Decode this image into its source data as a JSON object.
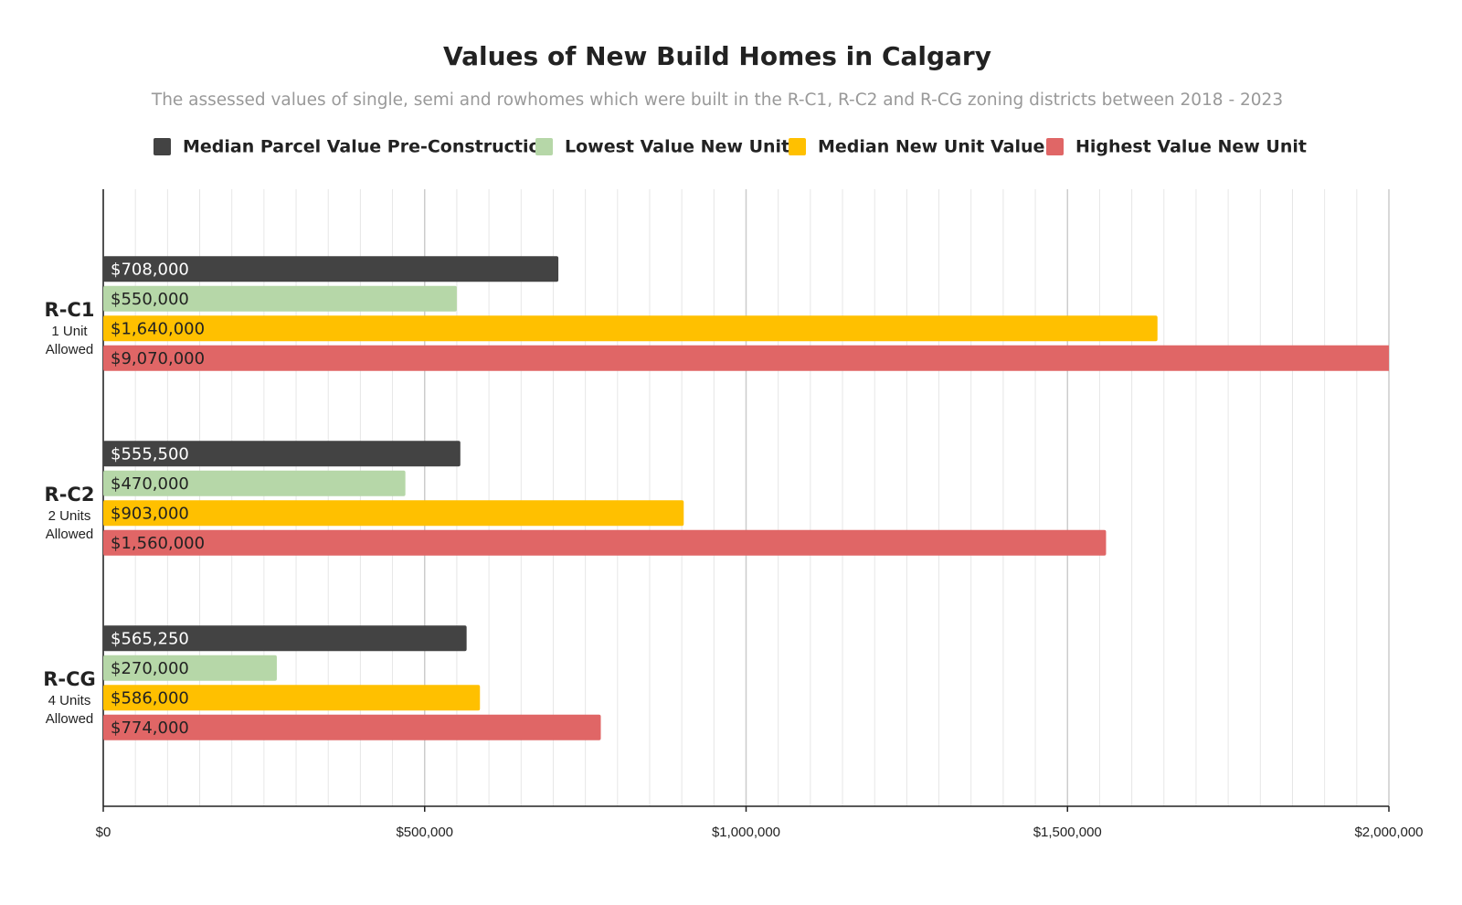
{
  "chart_data": {
    "type": "hbar",
    "title": "Values of New Build Homes in Calgary",
    "subtitle": "The assessed values of single, semi and rowhomes which were built in the R-C1, R-C2 and R-CG zoning districts between 2018 - 2023",
    "categories": [
      "R-C1",
      "R-C2",
      "R-CG"
    ],
    "category_notes": [
      [
        "1 Unit",
        "Allowed"
      ],
      [
        "2 Units",
        "Allowed"
      ],
      [
        "4 Units",
        "Allowed"
      ]
    ],
    "series": [
      {
        "name": "Median Parcel Value Pre-Construction",
        "color": "#434343",
        "label_color": "#ffffff",
        "values": [
          708000,
          555500,
          565250
        ],
        "value_labels": [
          "$708,000",
          "$555,500",
          "$565,250"
        ]
      },
      {
        "name": "Lowest Value New Unit",
        "color": "#b6d7a8",
        "label_color": "#222222",
        "values": [
          550000,
          470000,
          270000
        ],
        "value_labels": [
          "$550,000",
          "$470,000",
          "$270,000"
        ]
      },
      {
        "name": "Median New Unit Value",
        "color": "#ffc000",
        "label_color": "#222222",
        "values": [
          1640000,
          903000,
          586000
        ],
        "value_labels": [
          "$1,640,000",
          "$903,000",
          "$586,000"
        ]
      },
      {
        "name": "Highest Value New Unit",
        "color": "#e06666",
        "label_color": "#222222",
        "values": [
          9070000,
          1560000,
          774000
        ],
        "value_labels": [
          "$9,070,000",
          "$1,560,000",
          "$774,000"
        ]
      }
    ],
    "xlim": [
      0,
      2000000
    ],
    "xticks": [
      {
        "value": 0,
        "label": "$0"
      },
      {
        "value": 500000,
        "label": "$500,000"
      },
      {
        "value": 1000000,
        "label": "$1,000,000"
      },
      {
        "value": 1500000,
        "label": "$1,500,000"
      },
      {
        "value": 2000000,
        "label": "$2,000,000"
      }
    ],
    "minor_grid_step": 50000,
    "grid": true
  }
}
